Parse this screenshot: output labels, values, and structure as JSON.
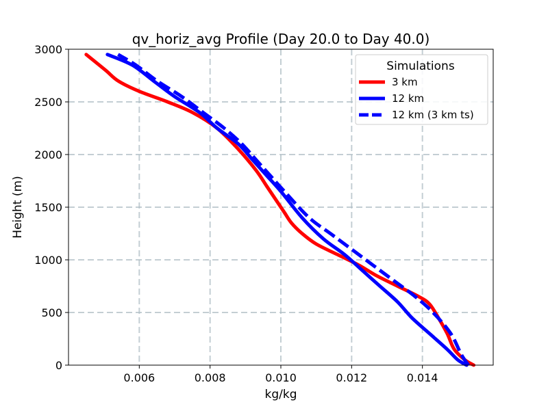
{
  "chart_data": {
    "type": "line",
    "title": "qv_horiz_avg Profile (Day 20.0 to Day 40.0)",
    "xlabel": "kg/kg",
    "ylabel": "Height (m)",
    "xlim": [
      0.004,
      0.016
    ],
    "ylim": [
      0,
      3000
    ],
    "xticks": [
      0.006,
      0.008,
      0.01,
      0.012,
      0.014
    ],
    "xtick_labels": [
      "0.006",
      "0.008",
      "0.010",
      "0.012",
      "0.014"
    ],
    "yticks": [
      0,
      500,
      1000,
      1500,
      2000,
      2500,
      3000
    ],
    "ytick_labels": [
      "0",
      "500",
      "1000",
      "1500",
      "2000",
      "2500",
      "3000"
    ],
    "grid": true,
    "legend": {
      "title": "Simulations",
      "position": "top-right"
    },
    "series": [
      {
        "name": "3 km",
        "color": "#ff0000",
        "style": "solid",
        "x": [
          0.01545,
          0.0152,
          0.0149,
          0.0147,
          0.01445,
          0.0142,
          0.0139,
          0.0133,
          0.0127,
          0.0122,
          0.0116,
          0.011,
          0.0106,
          0.0103,
          0.0101,
          0.0099,
          0.0096,
          0.0093,
          0.0088,
          0.0082,
          0.0075,
          0.0068,
          0.006,
          0.0054,
          0.00505,
          0.0045
        ],
        "y": [
          0,
          50,
          150,
          300,
          450,
          580,
          650,
          750,
          850,
          950,
          1050,
          1150,
          1250,
          1350,
          1450,
          1550,
          1700,
          1850,
          2050,
          2250,
          2400,
          2500,
          2600,
          2700,
          2800,
          2950
        ]
      },
      {
        "name": "12 km",
        "color": "#0000ff",
        "style": "solid",
        "x": [
          0.01525,
          0.015,
          0.0147,
          0.0142,
          0.0137,
          0.0133,
          0.0128,
          0.0123,
          0.0118,
          0.0112,
          0.0106,
          0.01,
          0.0096,
          0.0092,
          0.0088,
          0.0082,
          0.0077,
          0.007,
          0.0064,
          0.0058,
          0.0051
        ],
        "y": [
          0,
          50,
          150,
          300,
          450,
          600,
          750,
          900,
          1050,
          1200,
          1400,
          1650,
          1800,
          1950,
          2100,
          2250,
          2400,
          2550,
          2700,
          2850,
          2950
        ]
      },
      {
        "name": "12 km (3 km ts)",
        "color": "#0000ff",
        "style": "dashed",
        "x": [
          0.0153,
          0.0151,
          0.0148,
          0.0143,
          0.0138,
          0.0132,
          0.0126,
          0.012,
          0.0114,
          0.0108,
          0.0101,
          0.0097,
          0.0093,
          0.0089,
          0.0084,
          0.0078,
          0.0072,
          0.0065,
          0.0059,
          0.0054
        ],
        "y": [
          0,
          100,
          300,
          500,
          650,
          800,
          950,
          1100,
          1250,
          1400,
          1650,
          1800,
          1950,
          2100,
          2250,
          2400,
          2550,
          2700,
          2850,
          2950
        ]
      }
    ]
  }
}
